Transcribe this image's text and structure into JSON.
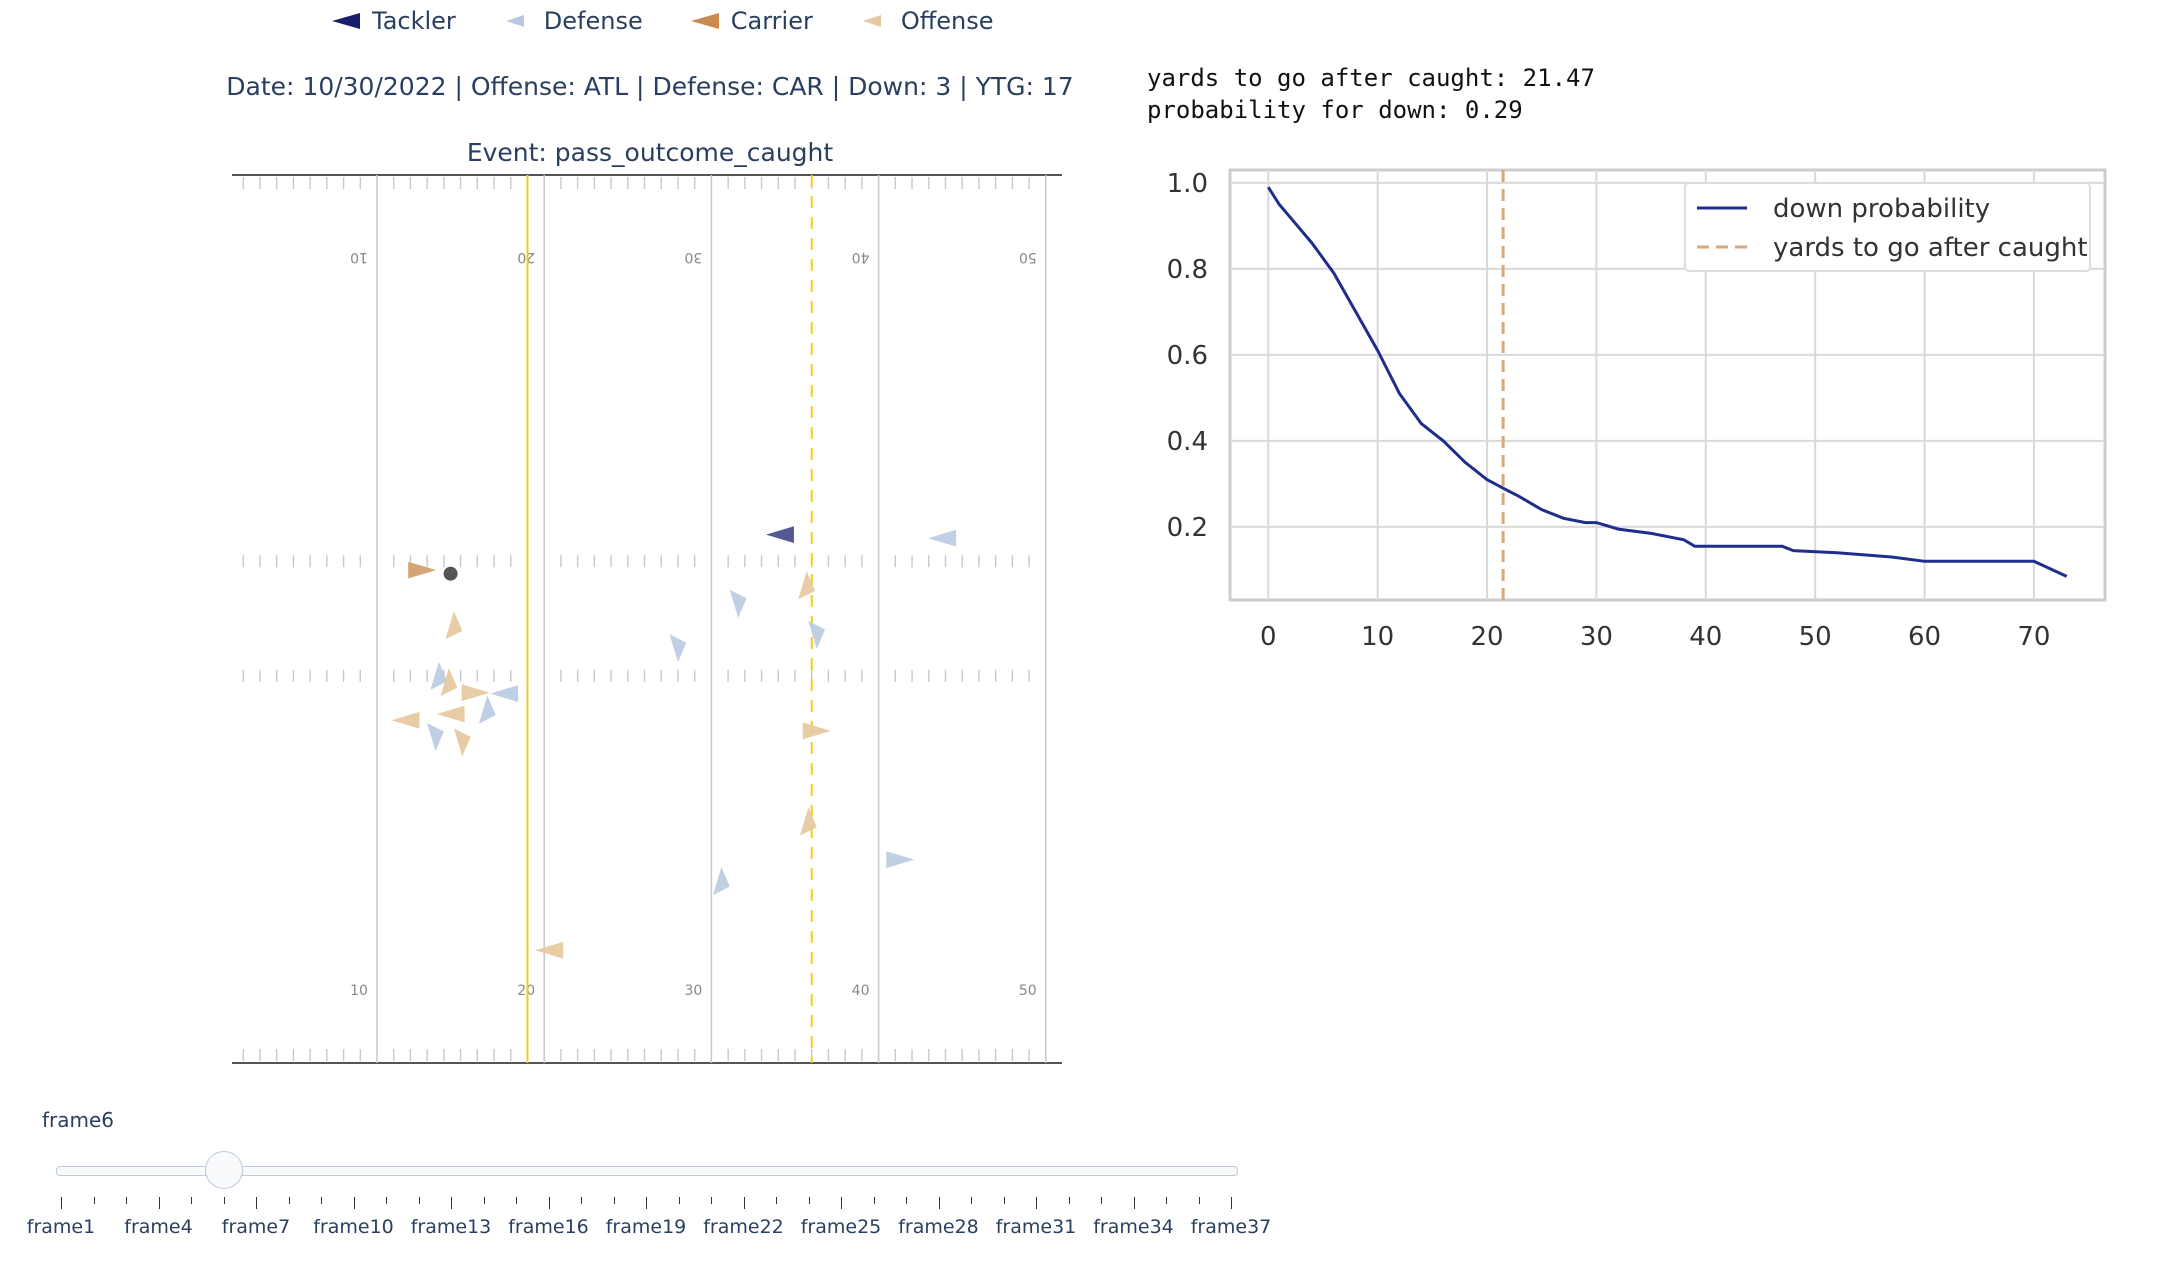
{
  "legend": [
    {
      "label": "Tackler",
      "color": "#1a1d6b"
    },
    {
      "label": "Defense",
      "color": "#b7c9e2"
    },
    {
      "label": "Carrier",
      "color": "#c98a4b"
    },
    {
      "label": "Offense",
      "color": "#e6c9a0"
    }
  ],
  "header": {
    "date": "Date: 10/30/2022",
    "offense": "Offense: ATL",
    "defense": "Defense: CAR",
    "down": "Down: 3",
    "ytg": "YTG: 17",
    "sep": " | "
  },
  "event_title": "Event: pass_outcome_caught",
  "field": {
    "yard_labels_top": [
      "10",
      "20",
      "30",
      "40",
      "50"
    ],
    "yard_labels_bottom": [
      "10",
      "20",
      "30",
      "40",
      "50"
    ],
    "line_of_scrimmage_color": "#f2cc1f",
    "first_down_color": "#f2cc1f",
    "line_of_scrimmage_yard": 19,
    "first_down_yard": 36,
    "ball_color": "#555555",
    "players": [
      {
        "team": "carrier",
        "x": 12.7,
        "y": 44.5,
        "dir": "right"
      },
      {
        "team": "tackler",
        "x": 34.1,
        "y": 40.5,
        "dir": "left"
      },
      {
        "team": "offense",
        "x": 14.6,
        "y": 50.7,
        "dir": "up"
      },
      {
        "team": "offense",
        "x": 35.7,
        "y": 46.2,
        "dir": "up"
      },
      {
        "team": "defense",
        "x": 43.8,
        "y": 40.9,
        "dir": "left"
      },
      {
        "team": "defense",
        "x": 31.6,
        "y": 48.3,
        "dir": "down"
      },
      {
        "team": "defense",
        "x": 36.3,
        "y": 51.8,
        "dir": "down"
      },
      {
        "team": "defense",
        "x": 28.0,
        "y": 53.3,
        "dir": "down"
      },
      {
        "team": "defense",
        "x": 13.7,
        "y": 56.4,
        "dir": "up"
      },
      {
        "team": "offense",
        "x": 14.3,
        "y": 57.1,
        "dir": "up"
      },
      {
        "team": "offense",
        "x": 15.9,
        "y": 58.3,
        "dir": "right"
      },
      {
        "team": "defense",
        "x": 17.6,
        "y": 58.4,
        "dir": "left"
      },
      {
        "team": "defense",
        "x": 16.6,
        "y": 60.2,
        "dir": "up"
      },
      {
        "team": "offense",
        "x": 14.4,
        "y": 60.7,
        "dir": "left"
      },
      {
        "team": "offense",
        "x": 11.7,
        "y": 61.4,
        "dir": "left"
      },
      {
        "team": "defense",
        "x": 13.5,
        "y": 63.3,
        "dir": "down"
      },
      {
        "team": "offense",
        "x": 15.1,
        "y": 63.9,
        "dir": "down"
      },
      {
        "team": "offense",
        "x": 36.3,
        "y": 62.6,
        "dir": "right"
      },
      {
        "team": "offense",
        "x": 35.8,
        "y": 72.8,
        "dir": "up"
      },
      {
        "team": "defense",
        "x": 41.3,
        "y": 77.1,
        "dir": "right"
      },
      {
        "team": "defense",
        "x": 30.6,
        "y": 79.5,
        "dir": "up"
      },
      {
        "team": "offense",
        "x": 20.3,
        "y": 87.3,
        "dir": "left"
      }
    ],
    "ball": {
      "x": 14.4,
      "y": 44.9
    }
  },
  "stats": {
    "line1": "yards to go after caught: 21.47",
    "line2": "probability for down: 0.29"
  },
  "chart_data": {
    "type": "line",
    "title": "",
    "xlabel": "",
    "ylabel": "",
    "xlim": [
      -3.5,
      76.5
    ],
    "ylim": [
      0.03,
      1.03
    ],
    "xticks": [
      "0",
      "10",
      "20",
      "30",
      "40",
      "50",
      "60",
      "70"
    ],
    "yticks": [
      "0.2",
      "0.4",
      "0.6",
      "0.8",
      "1.0"
    ],
    "grid": true,
    "legend_position": "top-right",
    "series": [
      {
        "name": "down probability",
        "color": "#1f2e8c",
        "x": [
          0,
          1,
          2,
          4,
          6,
          8,
          10,
          12,
          14,
          16,
          18,
          20,
          21.47,
          23,
          25,
          27,
          29,
          30,
          32,
          35,
          38,
          39,
          42,
          47,
          48,
          52,
          57,
          60,
          65,
          70,
          73
        ],
        "y": [
          0.99,
          0.95,
          0.92,
          0.86,
          0.79,
          0.7,
          0.61,
          0.51,
          0.44,
          0.4,
          0.35,
          0.31,
          0.29,
          0.27,
          0.24,
          0.22,
          0.21,
          0.21,
          0.195,
          0.185,
          0.17,
          0.155,
          0.155,
          0.155,
          0.145,
          0.14,
          0.13,
          0.12,
          0.12,
          0.12,
          0.085
        ]
      },
      {
        "name": "yards to go after caught",
        "color": "#d9a97a",
        "style": "dashed",
        "x_value": 21.47
      }
    ]
  },
  "slider": {
    "current_label": "frame6",
    "current_index": 5,
    "total_frames": 37,
    "tick_labels": [
      "frame1",
      "frame4",
      "frame7",
      "frame10",
      "frame13",
      "frame16",
      "frame19",
      "frame22",
      "frame25",
      "frame28",
      "frame31",
      "frame34",
      "frame37"
    ]
  }
}
